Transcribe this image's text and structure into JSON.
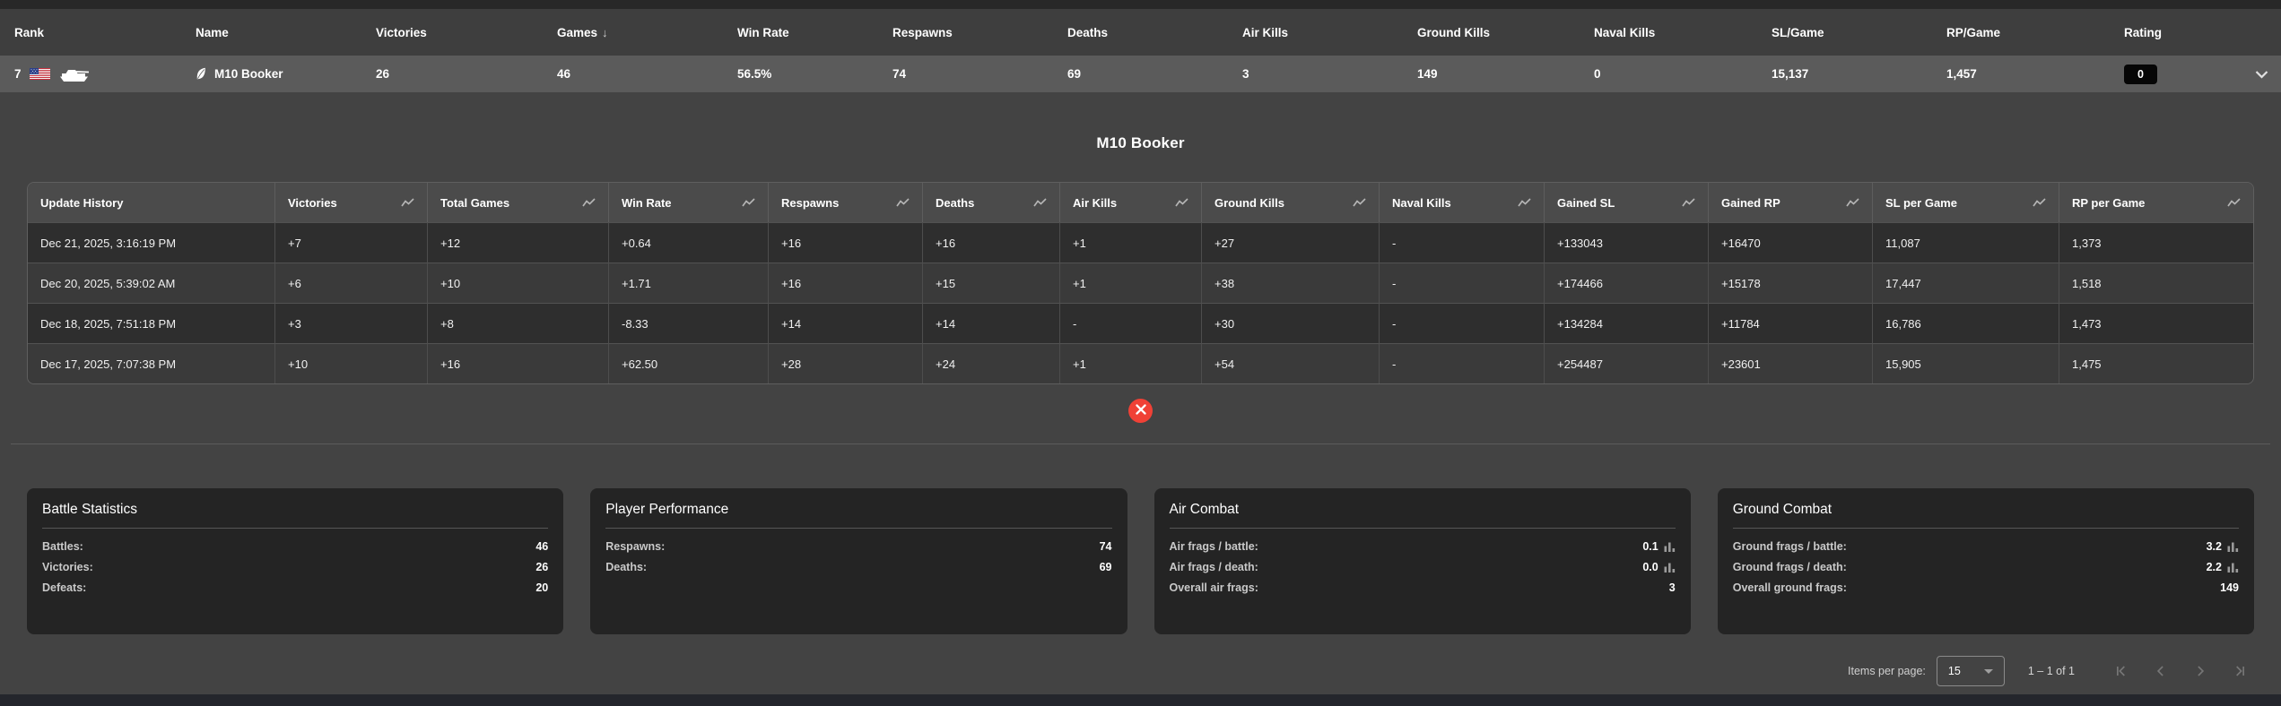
{
  "main_table": {
    "columns": [
      "Rank",
      "Name",
      "Victories",
      "Games",
      "Win Rate",
      "Respawns",
      "Deaths",
      "Air Kills",
      "Ground Kills",
      "Naval Kills",
      "SL/Game",
      "RP/Game",
      "Rating"
    ],
    "sort": {
      "column_index": 3,
      "arrow": "↓"
    },
    "row": {
      "rank": "7",
      "name": "M10 Booker",
      "victories": "26",
      "games": "46",
      "win_rate": "56.5%",
      "respawns": "74",
      "deaths": "69",
      "air_kills": "3",
      "ground_kills": "149",
      "naval_kills": "0",
      "sl_per_game": "15,137",
      "rp_per_game": "1,457",
      "rating": "0"
    }
  },
  "detail": {
    "title": "M10 Booker",
    "table": {
      "columns": [
        "Update History",
        "Victories",
        "Total Games",
        "Win Rate",
        "Respawns",
        "Deaths",
        "Air Kills",
        "Ground Kills",
        "Naval Kills",
        "Gained SL",
        "Gained RP",
        "SL per Game",
        "RP per Game"
      ],
      "rows": [
        [
          "Dec 21, 2025, 3:16:19 PM",
          "+7",
          "+12",
          "+0.64",
          "+16",
          "+16",
          "+1",
          "+27",
          "-",
          "+133043",
          "+16470",
          "11,087",
          "1,373"
        ],
        [
          "Dec 20, 2025, 5:39:02 AM",
          "+6",
          "+10",
          "+1.71",
          "+16",
          "+15",
          "+1",
          "+38",
          "-",
          "+174466",
          "+15178",
          "17,447",
          "1,518"
        ],
        [
          "Dec 18, 2025, 7:51:18 PM",
          "+3",
          "+8",
          "-8.33",
          "+14",
          "+14",
          "-",
          "+30",
          "-",
          "+134284",
          "+11784",
          "16,786",
          "1,473"
        ],
        [
          "Dec 17, 2025, 7:07:38 PM",
          "+10",
          "+16",
          "+62.50",
          "+28",
          "+24",
          "+1",
          "+54",
          "-",
          "+254487",
          "+23601",
          "15,905",
          "1,475"
        ]
      ]
    },
    "close_label": "✕"
  },
  "cards": [
    {
      "title": "Battle Statistics",
      "rows": [
        {
          "label": "Battles:",
          "value": "46",
          "chart_icon": false
        },
        {
          "label": "Victories:",
          "value": "26",
          "chart_icon": false
        },
        {
          "label": "Defeats:",
          "value": "20",
          "chart_icon": false
        }
      ]
    },
    {
      "title": "Player Performance",
      "rows": [
        {
          "label": "Respawns:",
          "value": "74",
          "chart_icon": false
        },
        {
          "label": "Deaths:",
          "value": "69",
          "chart_icon": false
        }
      ]
    },
    {
      "title": "Air Combat",
      "rows": [
        {
          "label": "Air frags / battle:",
          "value": "0.1",
          "chart_icon": true
        },
        {
          "label": "Air frags / death:",
          "value": "0.0",
          "chart_icon": true
        },
        {
          "label": "Overall air frags:",
          "value": "3",
          "chart_icon": false
        }
      ]
    },
    {
      "title": "Ground Combat",
      "rows": [
        {
          "label": "Ground frags / battle:",
          "value": "3.2",
          "chart_icon": true
        },
        {
          "label": "Ground frags / death:",
          "value": "2.2",
          "chart_icon": true
        },
        {
          "label": "Overall ground frags:",
          "value": "149",
          "chart_icon": false
        }
      ]
    }
  ],
  "pagination": {
    "items_per_page_label": "Items per page:",
    "items_per_page_value": "15",
    "range_label": "1 – 1 of 1"
  },
  "icons": {
    "us-flag-icon": "united-states flag",
    "tank-icon": "ground-vehicle silhouette",
    "vehicle-badge-icon": "leaf badge before vehicle name",
    "trend-icon": "zigzag trend line in column headers",
    "bar-chart-icon": "mini bar chart next to ratio values",
    "chevron-down-icon": "row expand chevron",
    "close-icon": "red circular close",
    "paginator": [
      "first-page-icon",
      "previous-page-icon",
      "next-page-icon",
      "last-page-icon"
    ]
  },
  "colors": {
    "page_bg": "#434343",
    "header_bg": "#3e3e3e",
    "player_row_bg": "#5b5b5b",
    "table_header_bg": "#4b4b4b",
    "row_dark": "#2e2e2e",
    "row_light": "#3a3a3a",
    "card_bg": "#242424",
    "close_red": "#f04136",
    "rating_badge_bg": "#060606"
  }
}
